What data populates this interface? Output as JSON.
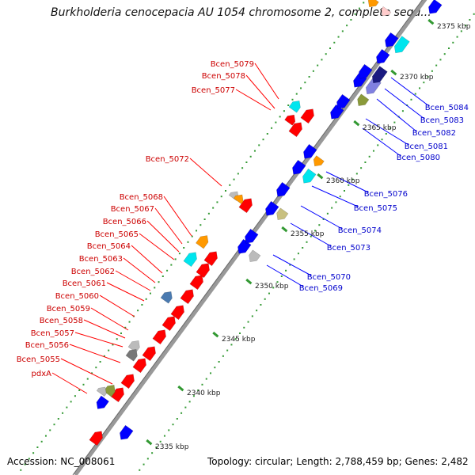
{
  "title": "Burkholderia cenocepacia AU 1054 chromosome 2, complete sequ...",
  "footer": {
    "accession_label": "Accession: NC_008061",
    "summary": "Topology: circular; Length: 2,788,459 bp; Genes: 2,482"
  },
  "ticks": [
    "2335 kbp",
    "2340 kbp",
    "2345 kbp",
    "2350 kbp",
    "2355 kbp",
    "2360 kbp",
    "2365 kbp",
    "2370 kbp",
    "2375 kbp"
  ],
  "genes_left": [
    "Bcen_5079",
    "Bcen_5078",
    "Bcen_5077",
    "Bcen_5072",
    "Bcen_5068",
    "Bcen_5067",
    "Bcen_5066",
    "Bcen_5065",
    "Bcen_5064",
    "Bcen_5063",
    "Bcen_5062",
    "Bcen_5061",
    "Bcen_5060",
    "Bcen_5059",
    "Bcen_5058",
    "Bcen_5057",
    "Bcen_5056",
    "Bcen_5055",
    "pdxA"
  ],
  "genes_right": [
    "Bcen_5084",
    "Bcen_5083",
    "Bcen_5082",
    "Bcen_5081",
    "Bcen_5080",
    "Bcen_5076",
    "Bcen_5075",
    "Bcen_5074",
    "Bcen_5073",
    "Bcen_5070",
    "Bcen_5069"
  ],
  "colors": {
    "forward": "#ff0000",
    "reverse": "#0000ff",
    "left_label": "#cc0000",
    "right_label": "#0000cc",
    "backbone": "#999999",
    "tick_dots": "#339933",
    "cyan": "#00e5ee",
    "orange": "#ff9900",
    "olive": "#8a9a3a",
    "khaki": "#c8c080",
    "grey": "#bbbbbb",
    "navy": "#1a1a80",
    "slate": "#8080e0",
    "steelblue": "#4a7ab0"
  }
}
